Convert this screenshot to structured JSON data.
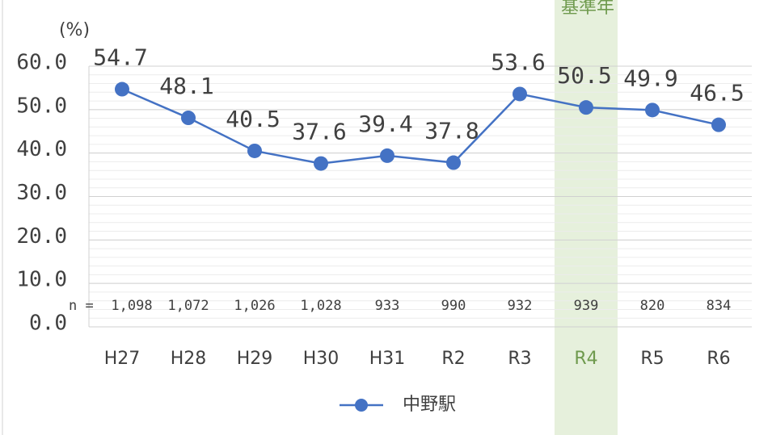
{
  "chart_data": {
    "type": "line",
    "y_label": "(%)",
    "categories": [
      "H27",
      "H28",
      "H29",
      "H30",
      "H31",
      "R2",
      "R3",
      "R4",
      "R5",
      "R6"
    ],
    "series": [
      {
        "name": "中野駅",
        "color": "#4472c4",
        "values": [
          54.7,
          48.1,
          40.5,
          37.6,
          39.4,
          37.8,
          53.6,
          50.5,
          49.9,
          46.5
        ]
      }
    ],
    "ylim": [
      0,
      60
    ],
    "yticks": [
      {
        "value": 0,
        "label": "0.0"
      },
      {
        "value": 10,
        "label": "10.0"
      },
      {
        "value": 20,
        "label": "20.0"
      },
      {
        "value": 30,
        "label": "30.0"
      },
      {
        "value": 40,
        "label": "40.0"
      },
      {
        "value": 50,
        "label": "50.0"
      },
      {
        "value": 60,
        "label": "60.0"
      }
    ],
    "grid": true,
    "n_prefix": "n =",
    "n": [
      1098,
      1072,
      1026,
      1028,
      933,
      990,
      932,
      939,
      820,
      834
    ],
    "n_labels": [
      "1,098",
      "1,072",
      "1,026",
      "1,028",
      "933",
      "990",
      "932",
      "939",
      "820",
      "834"
    ],
    "highlight_category": 7,
    "highlight_label": "基準年",
    "highlight_color": "#e6f0dc",
    "highlight_text_color": "#6f9a4e"
  }
}
